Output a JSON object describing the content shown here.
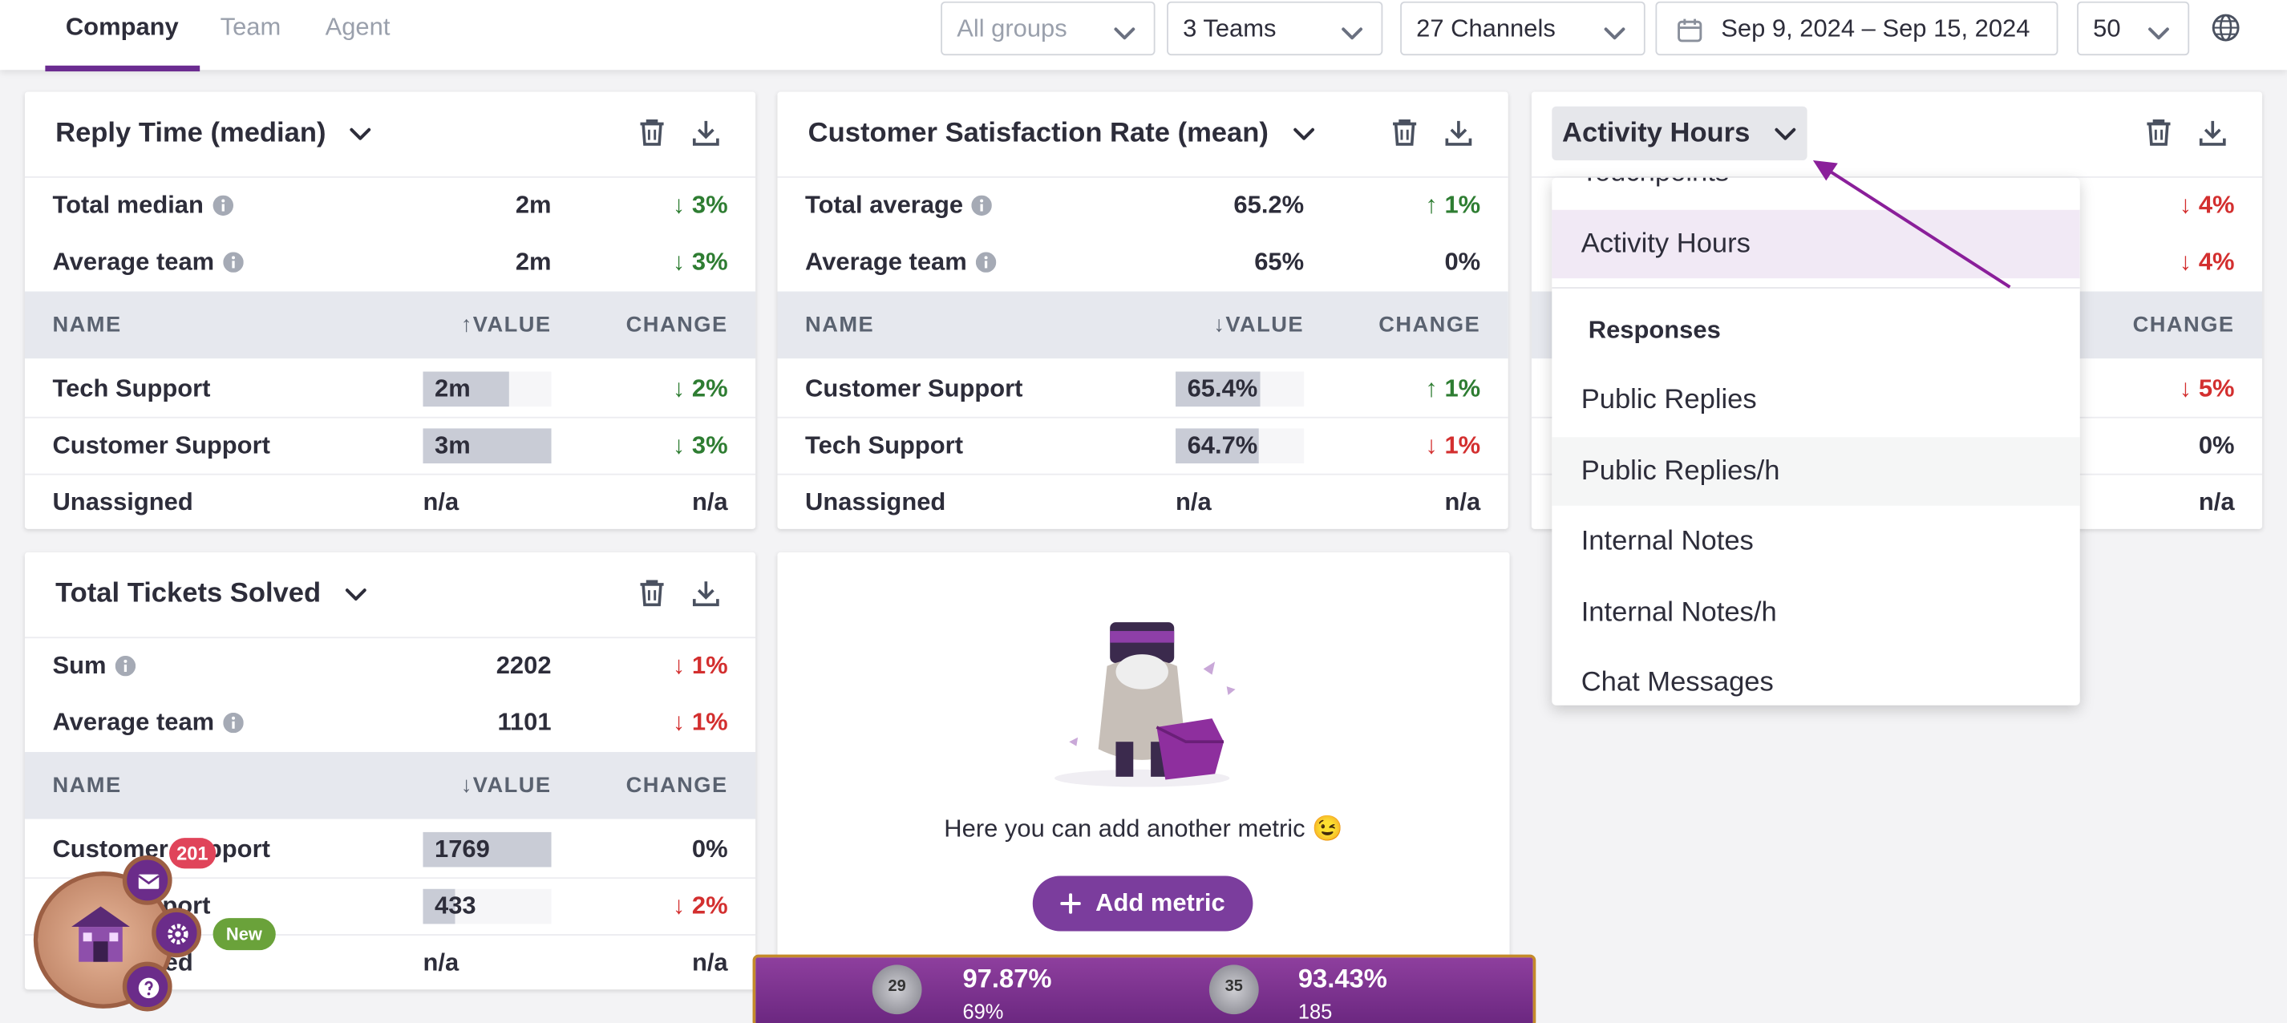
{
  "nav": {
    "tabs": [
      "Company",
      "Team",
      "Agent"
    ],
    "active": 0
  },
  "filters": [
    "All groups",
    "3 Teams",
    "27 Channels",
    "Sep 9, 2024 – Sep 15, 2024",
    "50"
  ],
  "cards": [
    {
      "title": "Reply Time (median)",
      "up_color": "#d32f2f",
      "down_color": "#2e7d32",
      "summary": [
        {
          "label": "Total median",
          "value": "2m",
          "change": "↓ 3%"
        },
        {
          "label": "Average team",
          "value": "2m",
          "change": "↓ 3%"
        }
      ],
      "columns": [
        "NAME",
        "↑VALUE",
        "CHANGE"
      ],
      "rows": [
        {
          "name": "Tech Support",
          "value": "2m",
          "change": "↓ 2%"
        },
        {
          "name": "Customer Support",
          "value": "3m",
          "change": "↓ 3%"
        },
        {
          "name": "Unassigned",
          "value": "n/a",
          "change": "n/a"
        }
      ]
    },
    {
      "title": "Customer Satisfaction Rate (mean)",
      "up_color": "#2e7d32",
      "down_color": "#d32f2f",
      "summary": [
        {
          "label": "Total average",
          "value": "65.2%",
          "change": "↑ 1%"
        },
        {
          "label": "Average team",
          "value": "65%",
          "change": "0%"
        }
      ],
      "columns": [
        "NAME",
        "↓VALUE",
        "CHANGE"
      ],
      "rows": [
        {
          "name": "Customer Support",
          "value": "65.4%",
          "change": "↑ 1%"
        },
        {
          "name": "Tech Support",
          "value": "64.7%",
          "change": "↓ 1%"
        },
        {
          "name": "Unassigned",
          "value": "n/a",
          "change": "n/a"
        }
      ]
    },
    {
      "title": "Activity Hours",
      "up_color": "#2e7d32",
      "down_color": "#d32f2f",
      "summary": [
        {
          "change": "↓ 4%"
        },
        {
          "change": "↓ 4%"
        }
      ],
      "columns": [
        "CHANGE"
      ],
      "rows": [
        {
          "change": "↓ 5%"
        },
        {
          "change": "0%"
        },
        {
          "change": "n/a"
        }
      ]
    },
    {
      "title": "Total Tickets Solved",
      "up_color": "#2e7d32",
      "down_color": "#d32f2f",
      "summary": [
        {
          "label": "Sum",
          "value": "2202",
          "change": "↓ 1%"
        },
        {
          "label": "Average team",
          "value": "1101",
          "change": "↓ 1%"
        }
      ],
      "columns": [
        "NAME",
        "↓VALUE",
        "CHANGE"
      ],
      "rows": [
        {
          "name": "Customer Support",
          "value": "1769",
          "change": "0%"
        },
        {
          "name": "Tech Support",
          "value": "433",
          "change": "↓ 2%"
        },
        {
          "name": "Unassigned",
          "value": "n/a",
          "change": "n/a"
        }
      ]
    }
  ],
  "dropdown": {
    "items": [
      "Touchpoints",
      "Activity Hours"
    ],
    "section": "Responses",
    "section_items": [
      "Public Replies",
      "Public Replies/h",
      "Internal Notes",
      "Internal Notes/h",
      "Chat Messages"
    ]
  },
  "empty": {
    "text": "Here you can add another metric 😉",
    "button": "Add metric"
  },
  "stats": [
    {
      "rank": "29",
      "value": "97.87%",
      "sub": "69%"
    },
    {
      "rank": "35",
      "value": "93.43%",
      "sub": "185"
    }
  ],
  "widget": {
    "badge": "201",
    "new": "New"
  }
}
